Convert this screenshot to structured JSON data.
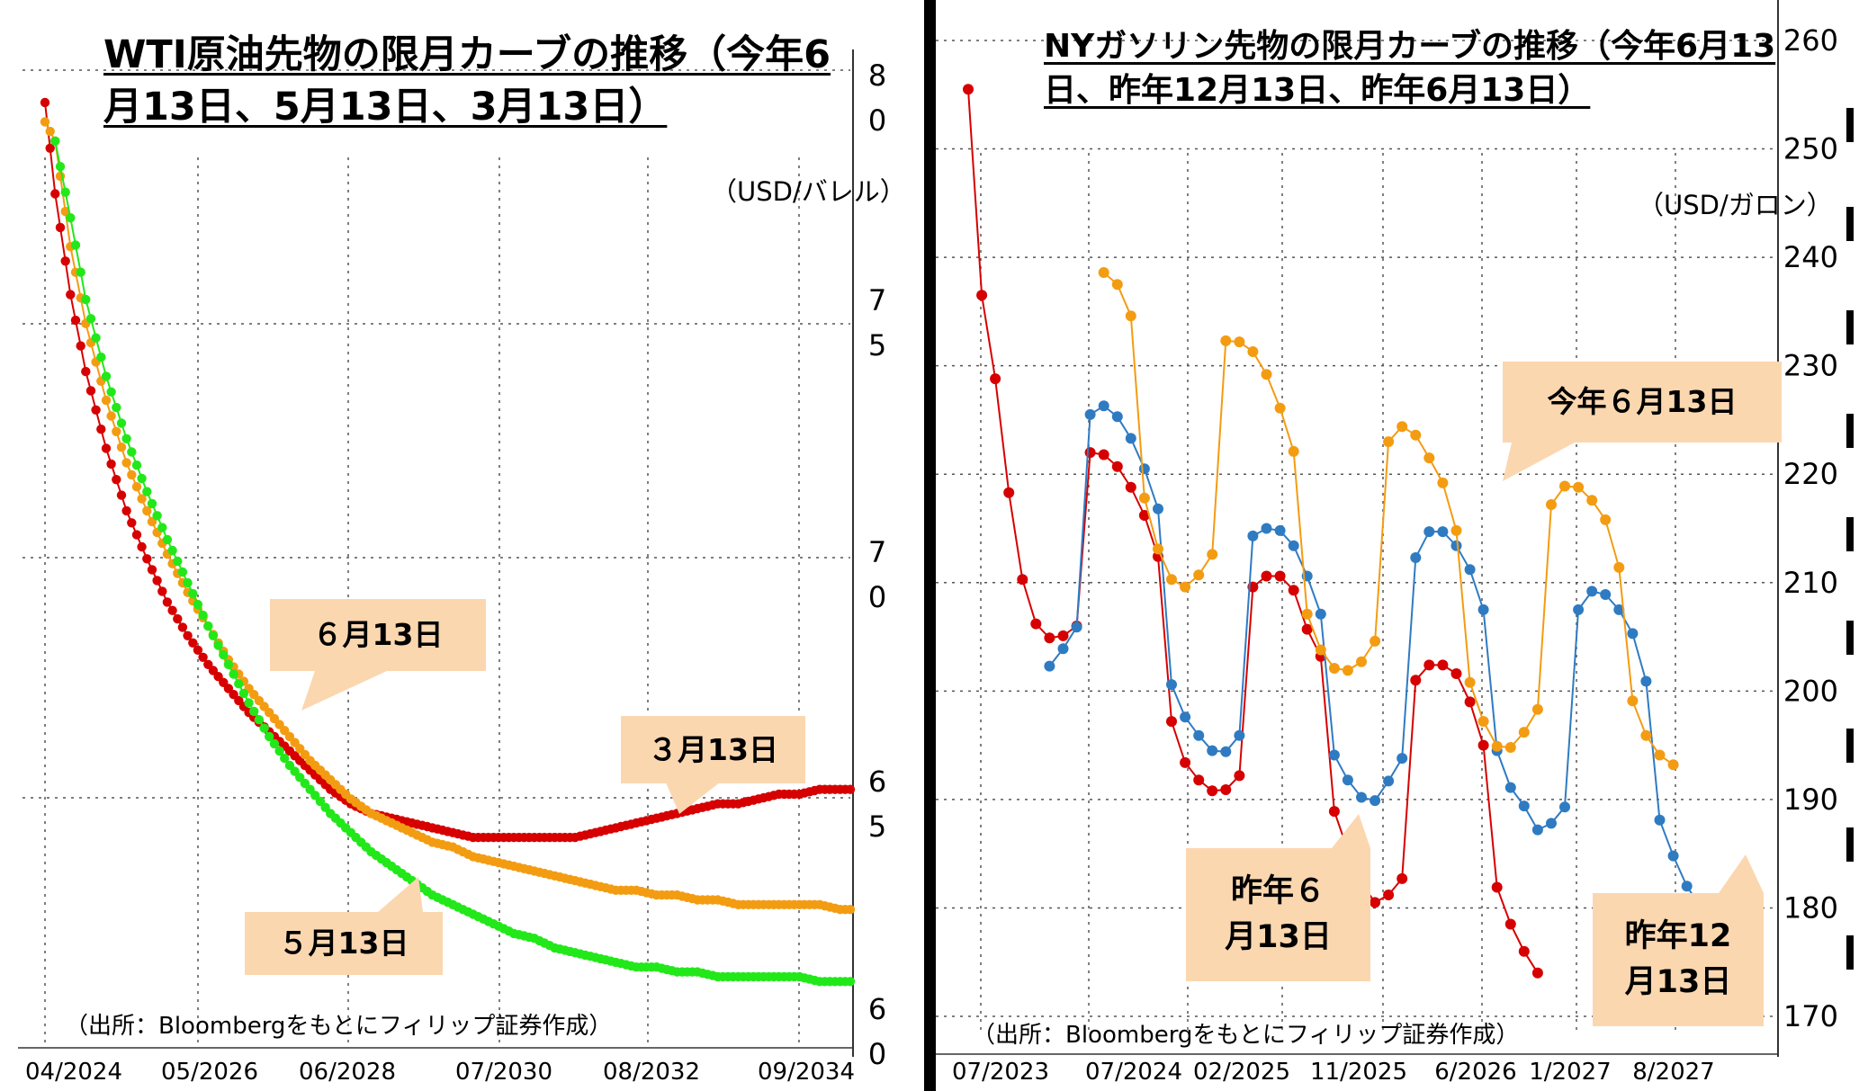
{
  "left": {
    "title": "WTI原油先物の限月カーブの推移（今年6月13日、5月13日、3月13日）",
    "unit": "（USD/バレル）",
    "source": "（出所：Bloombergをもとにフィリップ証券作成）",
    "callouts": {
      "jun": "６月13日",
      "mar": "３月13日",
      "may": "５月13日"
    }
  },
  "right": {
    "title": "NYガソリン先物の限月カーブの推移（今年6月13日、昨年12月13日、昨年6月13日）",
    "unit": "（USD/ガロン）",
    "source": "（出所：Bloombergをもとにフィリップ証券作成）",
    "callouts": {
      "this_jun": "今年６月13日",
      "last_jun": "昨年６\n月13日",
      "last_dec": "昨年12\n月13日"
    }
  },
  "colors": {
    "red": "#d60000",
    "orange": "#f39c12",
    "green": "#22e81a",
    "blue": "#2f7bc2",
    "callout": "#fbd7b0"
  },
  "chart_data": [
    {
      "type": "line",
      "x_tick_labels": [
        "04/2024",
        "05/2026",
        "06/2028",
        "07/2030",
        "08/2032",
        "09/2034"
      ],
      "y_tick_labels": [
        "80",
        "75",
        "70",
        "65",
        "60"
      ],
      "ylim": [
        60,
        80
      ],
      "series": [
        {
          "name": "３月13日",
          "color": "#d60000",
          "points": [
            [
              0,
              79.4
            ],
            [
              2,
              77.5
            ],
            [
              5,
              75.4
            ],
            [
              8,
              73.8
            ],
            [
              12,
              72.2
            ],
            [
              16,
              70.9
            ],
            [
              20,
              69.9
            ],
            [
              24,
              69.0
            ],
            [
              28,
              68.3
            ],
            [
              32,
              67.7
            ],
            [
              36,
              67.2
            ],
            [
              40,
              66.7
            ],
            [
              44,
              66.3
            ],
            [
              48,
              65.9
            ],
            [
              52,
              65.5
            ],
            [
              56,
              65.1
            ],
            [
              60,
              64.8
            ],
            [
              64,
              64.6
            ],
            [
              68,
              64.5
            ],
            [
              72,
              64.4
            ],
            [
              76,
              64.3
            ],
            [
              80,
              64.2
            ],
            [
              84,
              64.1
            ],
            [
              88,
              64.1
            ],
            [
              92,
              64.1
            ],
            [
              96,
              64.1
            ],
            [
              100,
              64.1
            ],
            [
              104,
              64.1
            ],
            [
              108,
              64.2
            ],
            [
              112,
              64.3
            ],
            [
              116,
              64.4
            ],
            [
              120,
              64.5
            ],
            [
              124,
              64.6
            ],
            [
              128,
              64.7
            ],
            [
              132,
              64.8
            ],
            [
              136,
              64.8
            ],
            [
              140,
              64.9
            ],
            [
              144,
              65.0
            ],
            [
              148,
              65.0
            ],
            [
              152,
              65.1
            ],
            [
              156,
              65.1
            ],
            [
              158,
              65.1
            ]
          ]
        },
        {
          "name": "６月13日",
          "color": "#f39c12",
          "points": [
            [
              0,
              79.0
            ],
            [
              2,
              78.6
            ],
            [
              5,
              76.4
            ],
            [
              8,
              74.8
            ],
            [
              12,
              73.2
            ],
            [
              16,
              71.9
            ],
            [
              20,
              70.9
            ],
            [
              24,
              70.0
            ],
            [
              28,
              69.2
            ],
            [
              32,
              68.5
            ],
            [
              36,
              67.8
            ],
            [
              40,
              67.2
            ],
            [
              44,
              66.7
            ],
            [
              48,
              66.2
            ],
            [
              52,
              65.7
            ],
            [
              56,
              65.3
            ],
            [
              60,
              64.9
            ],
            [
              64,
              64.6
            ],
            [
              68,
              64.4
            ],
            [
              72,
              64.2
            ],
            [
              76,
              64.0
            ],
            [
              80,
              63.9
            ],
            [
              84,
              63.7
            ],
            [
              88,
              63.6
            ],
            [
              92,
              63.5
            ],
            [
              96,
              63.4
            ],
            [
              100,
              63.3
            ],
            [
              104,
              63.2
            ],
            [
              108,
              63.1
            ],
            [
              112,
              63.0
            ],
            [
              116,
              63.0
            ],
            [
              120,
              62.9
            ],
            [
              124,
              62.9
            ],
            [
              128,
              62.8
            ],
            [
              132,
              62.8
            ],
            [
              136,
              62.7
            ],
            [
              140,
              62.7
            ],
            [
              144,
              62.7
            ],
            [
              148,
              62.7
            ],
            [
              152,
              62.7
            ],
            [
              156,
              62.6
            ],
            [
              158,
              62.6
            ]
          ]
        },
        {
          "name": "５月13日",
          "color": "#22e81a",
          "points": [
            [
              2,
              78.6
            ],
            [
              5,
              77.0
            ],
            [
              8,
              75.3
            ],
            [
              12,
              73.7
            ],
            [
              16,
              72.4
            ],
            [
              20,
              71.3
            ],
            [
              24,
              70.3
            ],
            [
              28,
              69.4
            ],
            [
              32,
              68.5
            ],
            [
              36,
              67.7
            ],
            [
              40,
              66.9
            ],
            [
              44,
              66.2
            ],
            [
              48,
              65.6
            ],
            [
              52,
              65.1
            ],
            [
              56,
              64.6
            ],
            [
              60,
              64.2
            ],
            [
              64,
              63.8
            ],
            [
              68,
              63.5
            ],
            [
              72,
              63.2
            ],
            [
              76,
              62.9
            ],
            [
              80,
              62.7
            ],
            [
              84,
              62.5
            ],
            [
              88,
              62.3
            ],
            [
              92,
              62.1
            ],
            [
              96,
              62.0
            ],
            [
              100,
              61.8
            ],
            [
              104,
              61.7
            ],
            [
              108,
              61.6
            ],
            [
              112,
              61.5
            ],
            [
              116,
              61.4
            ],
            [
              120,
              61.4
            ],
            [
              124,
              61.3
            ],
            [
              128,
              61.3
            ],
            [
              132,
              61.2
            ],
            [
              136,
              61.2
            ],
            [
              140,
              61.2
            ],
            [
              144,
              61.2
            ],
            [
              148,
              61.2
            ],
            [
              152,
              61.1
            ],
            [
              156,
              61.1
            ],
            [
              158,
              61.1
            ]
          ]
        }
      ]
    },
    {
      "type": "line",
      "x_tick_labels": [
        "07/2023",
        "07/2024",
        "02/2025",
        "11/2025",
        "6/2026",
        "1/2027",
        "8/2027"
      ],
      "y_tick_labels": [
        "260",
        "250",
        "240",
        "230",
        "220",
        "210",
        "200",
        "190",
        "180",
        "170"
      ],
      "ylim": [
        170,
        260
      ],
      "series": [
        {
          "name": "昨年６月13日",
          "color": "#d60000",
          "start": 0,
          "values": [
            255.5,
            236.5,
            228.8,
            218.3,
            210.3,
            206.2,
            204.9,
            205.1,
            206.0,
            222.0,
            221.8,
            220.7,
            218.8,
            216.2,
            212.4,
            197.2,
            193.4,
            191.8,
            190.8,
            190.9,
            192.2,
            209.6,
            210.6,
            210.6,
            209.3,
            205.7,
            203.2,
            188.9,
            185.3,
            182.3,
            180.5,
            181.2,
            182.7,
            201.0,
            202.4,
            202.4,
            201.6,
            199.0,
            195.0,
            181.9,
            178.5,
            176.0,
            174.0
          ]
        },
        {
          "name": "昨年12月13日",
          "color": "#2f7bc2",
          "start": 6,
          "values": [
            202.3,
            203.9,
            205.9,
            225.5,
            226.3,
            225.3,
            223.3,
            220.5,
            216.8,
            200.6,
            197.6,
            195.9,
            194.5,
            194.4,
            195.9,
            214.3,
            215.0,
            214.8,
            213.4,
            210.6,
            207.1,
            194.1,
            191.8,
            190.2,
            189.9,
            191.7,
            193.8,
            212.3,
            214.7,
            214.7,
            213.4,
            211.2,
            207.5,
            194.5,
            191.1,
            189.4,
            187.2,
            187.8,
            189.3,
            207.5,
            209.2,
            208.9,
            207.5,
            205.3,
            200.9,
            188.1,
            184.8,
            182.0,
            180.1
          ]
        },
        {
          "name": "今年６月13日",
          "color": "#f39c12",
          "start": 10,
          "values": [
            238.6,
            237.5,
            234.6,
            217.8,
            213.1,
            210.3,
            209.6,
            210.7,
            212.6,
            232.3,
            232.2,
            231.3,
            229.2,
            226.1,
            222.1,
            207.1,
            203.8,
            202.1,
            201.9,
            202.7,
            204.6,
            223.0,
            224.4,
            223.6,
            221.5,
            219.2,
            214.8,
            200.8,
            197.2,
            194.9,
            194.8,
            196.2,
            198.3,
            217.2,
            218.9,
            218.8,
            217.6,
            215.8,
            211.4,
            199.1,
            195.9,
            194.1,
            193.2
          ]
        }
      ]
    }
  ]
}
